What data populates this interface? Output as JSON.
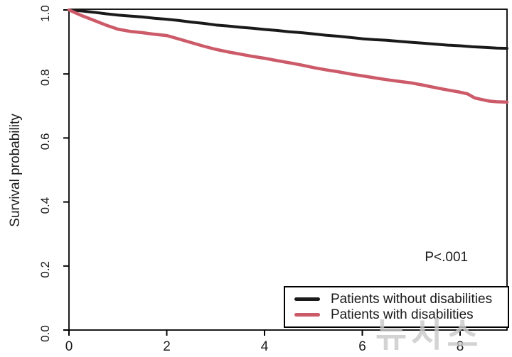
{
  "figure": {
    "watermark": "뉴시스",
    "background": "#ffffff"
  },
  "chart_data": {
    "type": "line",
    "subtype": "kaplan-meier-survival",
    "title": "",
    "xlabel": "",
    "ylabel": "Survival probability",
    "xlim": [
      0,
      8.96
    ],
    "ylim": [
      0,
      1
    ],
    "x_ticks": [
      0,
      2,
      4,
      6,
      8
    ],
    "x_tick_labels": [
      "0",
      "2",
      "4",
      "6",
      "8"
    ],
    "y_ticks": [
      0.0,
      0.2,
      0.4,
      0.6,
      0.8,
      1.0
    ],
    "y_tick_labels": [
      "0.0",
      "0.2",
      "0.4",
      "0.6",
      "0.8",
      "1.0"
    ],
    "grid": false,
    "frame": true,
    "legend_position": "bottom-right-inside",
    "annotation": {
      "text": "P<.001",
      "x": 7.72,
      "y": 0.215
    },
    "series": [
      {
        "id": "without-disabilities",
        "name": "Patients without disabilities",
        "color": "#1a1a1a",
        "line_width": 4,
        "x": [
          0,
          0.25,
          0.5,
          0.75,
          1,
          1.25,
          1.5,
          1.75,
          2,
          2.25,
          2.5,
          2.75,
          3,
          3.25,
          3.5,
          3.75,
          4,
          4.25,
          4.5,
          4.75,
          5,
          5.25,
          5.5,
          5.75,
          6,
          6.25,
          6.5,
          6.75,
          7,
          7.25,
          7.5,
          7.75,
          8,
          8.25,
          8.5,
          8.75,
          8.96
        ],
        "y": [
          1.0,
          0.997,
          0.993,
          0.988,
          0.984,
          0.981,
          0.978,
          0.974,
          0.971,
          0.967,
          0.962,
          0.958,
          0.953,
          0.95,
          0.946,
          0.943,
          0.939,
          0.936,
          0.932,
          0.929,
          0.925,
          0.921,
          0.918,
          0.914,
          0.91,
          0.907,
          0.905,
          0.902,
          0.899,
          0.896,
          0.893,
          0.89,
          0.888,
          0.885,
          0.883,
          0.881,
          0.88
        ]
      },
      {
        "id": "with-disabilities",
        "name": "Patients with disabilities",
        "color": "#cc5a69",
        "line_width": 4.5,
        "x": [
          0,
          0.25,
          0.5,
          0.75,
          1,
          1.25,
          1.5,
          1.75,
          2,
          2.25,
          2.5,
          2.75,
          3,
          3.25,
          3.5,
          3.75,
          4,
          4.25,
          4.5,
          4.75,
          5,
          5.25,
          5.5,
          5.75,
          6,
          6.25,
          6.5,
          6.75,
          7,
          7.25,
          7.5,
          7.75,
          8,
          8.15,
          8.3,
          8.45,
          8.6,
          8.75,
          8.96
        ],
        "y": [
          1.0,
          0.983,
          0.968,
          0.953,
          0.94,
          0.933,
          0.929,
          0.924,
          0.92,
          0.909,
          0.898,
          0.887,
          0.877,
          0.869,
          0.862,
          0.855,
          0.849,
          0.842,
          0.835,
          0.828,
          0.82,
          0.813,
          0.807,
          0.8,
          0.794,
          0.788,
          0.782,
          0.777,
          0.772,
          0.765,
          0.757,
          0.75,
          0.743,
          0.738,
          0.725,
          0.72,
          0.715,
          0.713,
          0.712
        ]
      }
    ]
  }
}
